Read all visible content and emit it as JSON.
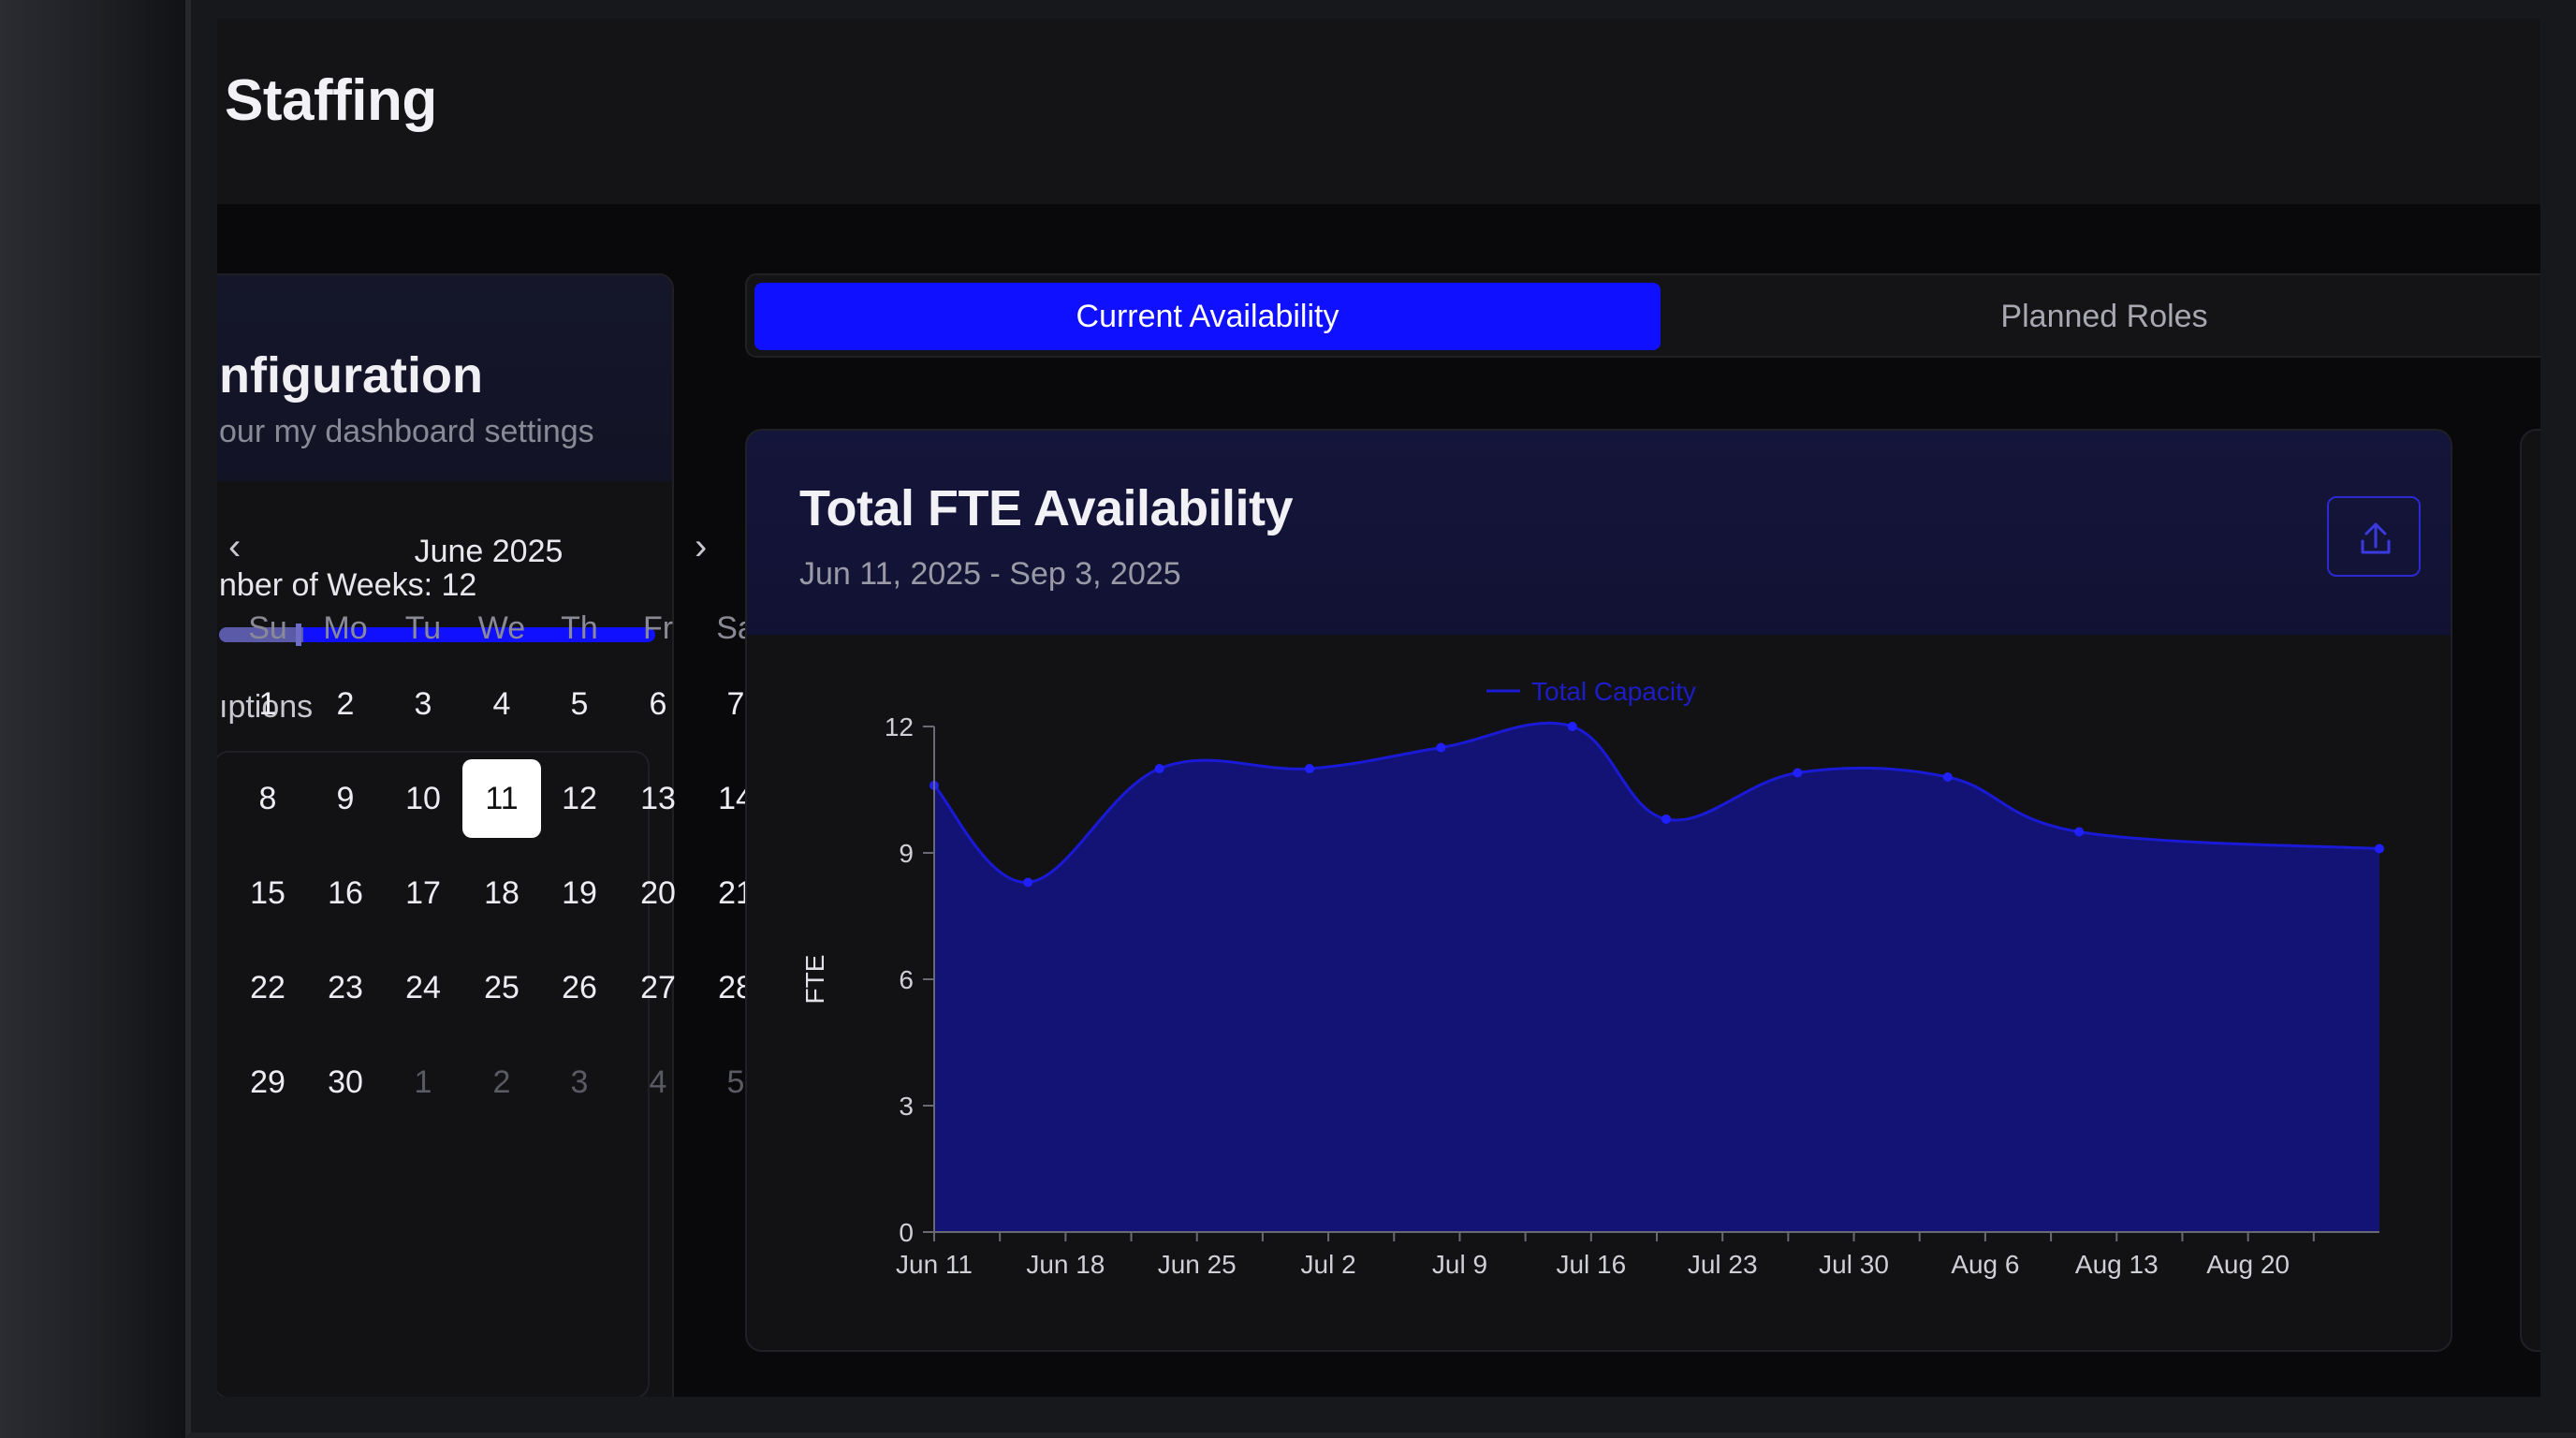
{
  "app": {
    "title": "Staffing"
  },
  "config": {
    "title": "nfiguration",
    "subtitle": "our my dashboard settings",
    "weeks_label": "nber of Weeks: 12",
    "weeks_value": 12,
    "options_label": "ıptions"
  },
  "calendar": {
    "month_label": "June 2025",
    "prev_icon": "chevron-left-icon",
    "next_icon": "chevron-right-icon",
    "weekdays": [
      "Su",
      "Mo",
      "Tu",
      "We",
      "Th",
      "Fr",
      "Sa"
    ],
    "weeks": [
      [
        "1",
        "2",
        "3",
        "4",
        "5",
        "6",
        "7"
      ],
      [
        "8",
        "9",
        "10",
        "11",
        "12",
        "13",
        "14"
      ],
      [
        "15",
        "16",
        "17",
        "18",
        "19",
        "20",
        "21"
      ],
      [
        "22",
        "23",
        "24",
        "25",
        "26",
        "27",
        "28"
      ],
      [
        "29",
        "30",
        "1",
        "2",
        "3",
        "4",
        "5"
      ]
    ],
    "selected_day": "11"
  },
  "tabs": {
    "current": "Current Availability",
    "planned": "Planned Roles"
  },
  "card": {
    "title": "Total FTE Availability",
    "subtitle": "Jun 11, 2025 - Sep 3, 2025",
    "export_icon": "upload-icon"
  },
  "colors": {
    "accent": "#0f10ff",
    "area_fill": "#14147a",
    "line": "#1a1ad6",
    "point": "#2020ff"
  },
  "chart_data": {
    "type": "area",
    "legend": "Total Capacity",
    "ylabel": "FTE",
    "xlabel": "",
    "ylim": [
      0,
      12
    ],
    "yticks": [
      0,
      3,
      6,
      9,
      12
    ],
    "grid": false,
    "legend_position": "top-center",
    "x_tick_labels": [
      "Jun 11",
      "Jun 18",
      "Jun 25",
      "Jul 2",
      "Jul 9",
      "Jul 16",
      "Jul 23",
      "Jul 30",
      "Aug 6",
      "Aug 13",
      "Aug 20"
    ],
    "series": [
      {
        "name": "Total Capacity",
        "points": [
          {
            "x": "2025-06-11",
            "y": 10.6
          },
          {
            "x": "2025-06-16",
            "y": 8.3
          },
          {
            "x": "2025-06-23",
            "y": 11.0
          },
          {
            "x": "2025-07-01",
            "y": 11.0
          },
          {
            "x": "2025-07-08",
            "y": 11.5
          },
          {
            "x": "2025-07-15",
            "y": 12.0
          },
          {
            "x": "2025-07-20",
            "y": 9.8
          },
          {
            "x": "2025-07-27",
            "y": 10.9
          },
          {
            "x": "2025-08-04",
            "y": 10.8
          },
          {
            "x": "2025-08-11",
            "y": 9.5
          },
          {
            "x": "2025-08-27",
            "y": 9.1
          }
        ]
      }
    ]
  }
}
